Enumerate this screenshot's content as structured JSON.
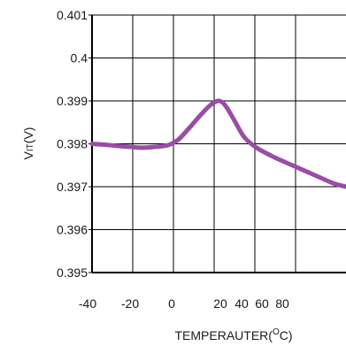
{
  "chart_data": {
    "type": "line",
    "title": "",
    "xlabel": "TEMPERAUTER(",
    "xlabel_sup": "O",
    "xlabel_suffix": "C)",
    "ylabel": "V",
    "ylabel_sub": "IT",
    "ylabel_suffix": "(V)",
    "ylim": [
      0.395,
      0.401
    ],
    "y_ticks": [
      0.395,
      0.396,
      0.397,
      0.398,
      0.399,
      0.4,
      0.401
    ],
    "y_tick_labels": [
      "0.395",
      "0.396",
      "0.397",
      "0.398",
      "0.399",
      "0.4",
      "0.401"
    ],
    "x_tick_labels": [
      "-40",
      "-20",
      "0",
      "20",
      "40",
      "60",
      "80"
    ],
    "grid": true,
    "series": [
      {
        "color": "#9b4ca6",
        "points": [
          {
            "t": 0.0,
            "v": 0.398
          },
          {
            "t": 0.05,
            "v": 0.39798
          },
          {
            "t": 0.1,
            "v": 0.39795
          },
          {
            "t": 0.15,
            "v": 0.39793
          },
          {
            "t": 0.2,
            "v": 0.39791
          },
          {
            "t": 0.25,
            "v": 0.39793
          },
          {
            "t": 0.3,
            "v": 0.39797
          },
          {
            "t": 0.34,
            "v": 0.3981
          },
          {
            "t": 0.38,
            "v": 0.39835
          },
          {
            "t": 0.42,
            "v": 0.39862
          },
          {
            "t": 0.46,
            "v": 0.39887
          },
          {
            "t": 0.49,
            "v": 0.39899
          },
          {
            "t": 0.51,
            "v": 0.39898
          },
          {
            "t": 0.53,
            "v": 0.39885
          },
          {
            "t": 0.56,
            "v": 0.39855
          },
          {
            "t": 0.6,
            "v": 0.39815
          },
          {
            "t": 0.65,
            "v": 0.3979
          },
          {
            "t": 0.72,
            "v": 0.39768
          },
          {
            "t": 0.8,
            "v": 0.39747
          },
          {
            "t": 0.88,
            "v": 0.39726
          },
          {
            "t": 0.95,
            "v": 0.39708
          },
          {
            "t": 1.0,
            "v": 0.397
          }
        ]
      }
    ]
  }
}
